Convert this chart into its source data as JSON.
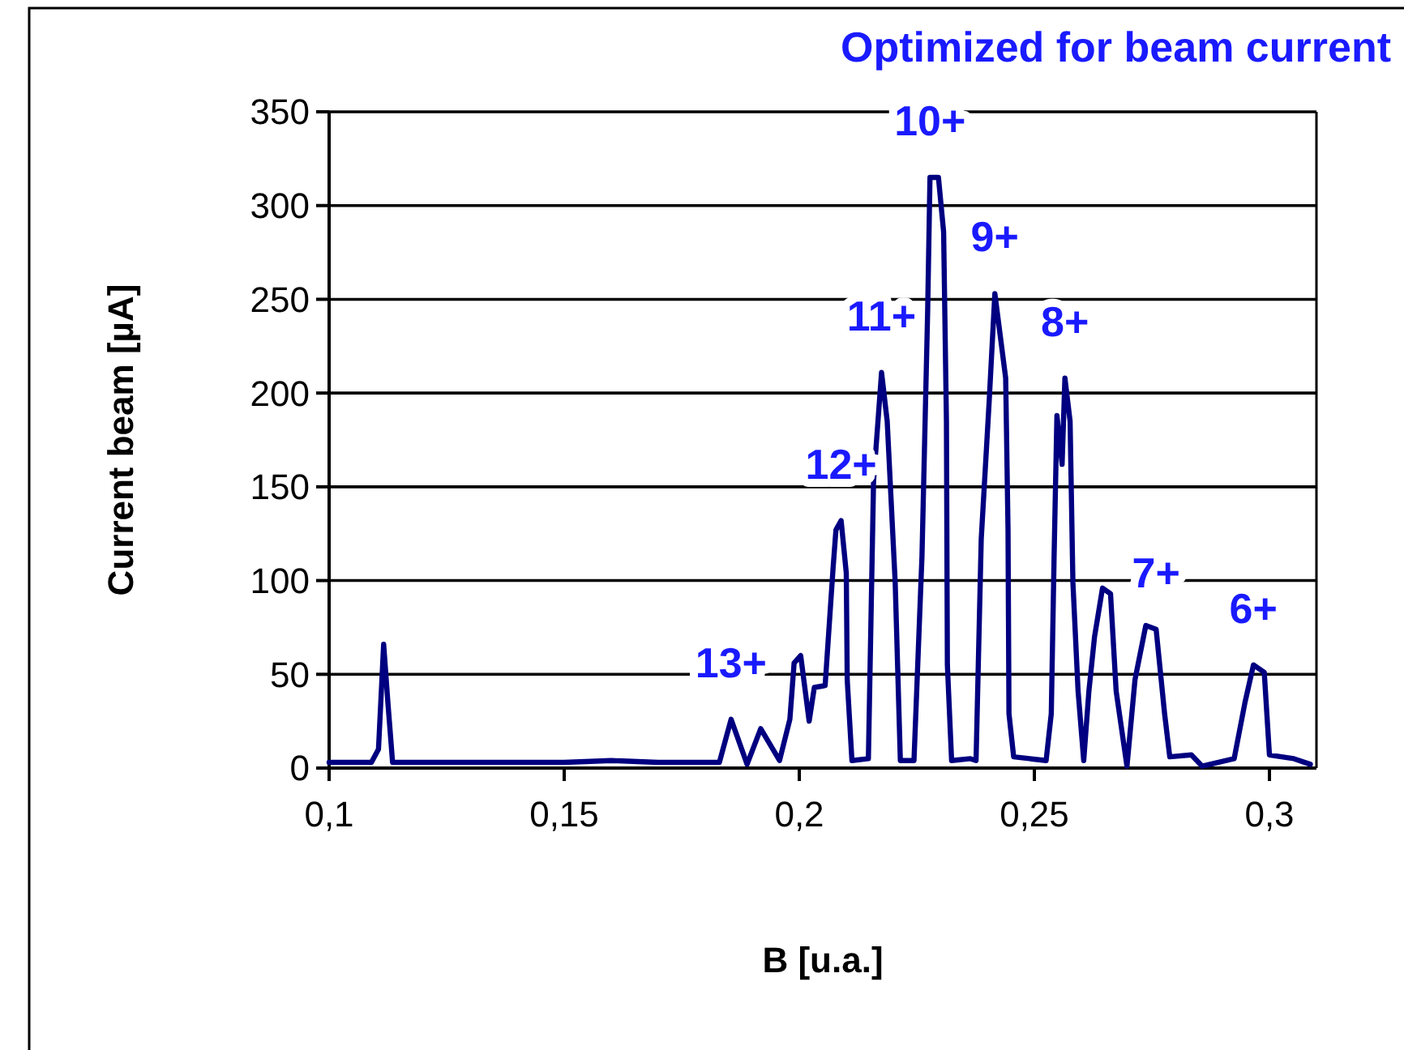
{
  "chart_data": {
    "type": "line",
    "title": "Optimized for beam current",
    "xlabel": "B [u.a.]",
    "ylabel": "Current beam [µA]",
    "xlim": [
      0.1,
      0.31
    ],
    "ylim": [
      0,
      350
    ],
    "xticks": [
      {
        "value": 0.1,
        "label": "0,1"
      },
      {
        "value": 0.15,
        "label": "0,15"
      },
      {
        "value": 0.2,
        "label": "0,2"
      },
      {
        "value": 0.25,
        "label": "0,25"
      },
      {
        "value": 0.3,
        "label": "0,3"
      }
    ],
    "yticks": [
      0,
      50,
      100,
      150,
      200,
      250,
      300,
      350
    ],
    "grid": "y",
    "marker": "none",
    "line_style": "solid",
    "series": [
      {
        "color": "#000080",
        "x": [
          0.1,
          0.109,
          0.1105,
          0.1116,
          0.1125,
          0.1135,
          0.12,
          0.15,
          0.16,
          0.17,
          0.183,
          0.1855,
          0.1889,
          0.1918,
          0.1958,
          0.198,
          0.1989,
          0.2003,
          0.2021,
          0.2032,
          0.2055,
          0.2072,
          0.2078,
          0.2089,
          0.21,
          0.2102,
          0.2112,
          0.2147,
          0.2158,
          0.2175,
          0.2187,
          0.2204,
          0.2215,
          0.2244,
          0.2261,
          0.2273,
          0.2278,
          0.2296,
          0.2307,
          0.2313,
          0.2315,
          0.2324,
          0.2364,
          0.2376,
          0.2387,
          0.2404,
          0.2416,
          0.2439,
          0.2444,
          0.2446,
          0.2456,
          0.249,
          0.2525,
          0.2536,
          0.2542,
          0.2548,
          0.2559,
          0.2565,
          0.2576,
          0.2582,
          0.2593,
          0.2605,
          0.2616,
          0.2628,
          0.2645,
          0.2662,
          0.2674,
          0.2697,
          0.2714,
          0.2737,
          0.2759,
          0.2777,
          0.2788,
          0.2834,
          0.2857,
          0.2925,
          0.2948,
          0.2966,
          0.2989,
          0.3,
          0.3052,
          0.3087
        ],
        "values": [
          3,
          3,
          10,
          66,
          35,
          3,
          3,
          3,
          4,
          3,
          3,
          26,
          2,
          21,
          4,
          26,
          56,
          60,
          25,
          43,
          44,
          107,
          127,
          132,
          104,
          47,
          4,
          5,
          153,
          211,
          185,
          99,
          4,
          4,
          113,
          243,
          315,
          315,
          286,
          185,
          55,
          4,
          5,
          4,
          122,
          196,
          253,
          208,
          127,
          29,
          6,
          5,
          4,
          29,
          113,
          188,
          162,
          208,
          185,
          99,
          41,
          4,
          41,
          70,
          96,
          93,
          41,
          1,
          47,
          76,
          74,
          29,
          6,
          7,
          1,
          5,
          35,
          55,
          51,
          7,
          5,
          2
        ]
      }
    ],
    "annotations": [
      {
        "text": "10+",
        "x": 0.2278,
        "y": 315
      },
      {
        "text": "9+",
        "x": 0.2416,
        "y": 253
      },
      {
        "text": "8+",
        "x": 0.2565,
        "y": 208
      },
      {
        "text": "11+",
        "x": 0.2175,
        "y": 211
      },
      {
        "text": "12+",
        "x": 0.2089,
        "y": 132
      },
      {
        "text": "13+",
        "x": 0.1855,
        "y": 26
      },
      {
        "text": "7+",
        "x": 0.2759,
        "y": 74
      },
      {
        "text": "6+",
        "x": 0.2966,
        "y": 55
      }
    ]
  }
}
